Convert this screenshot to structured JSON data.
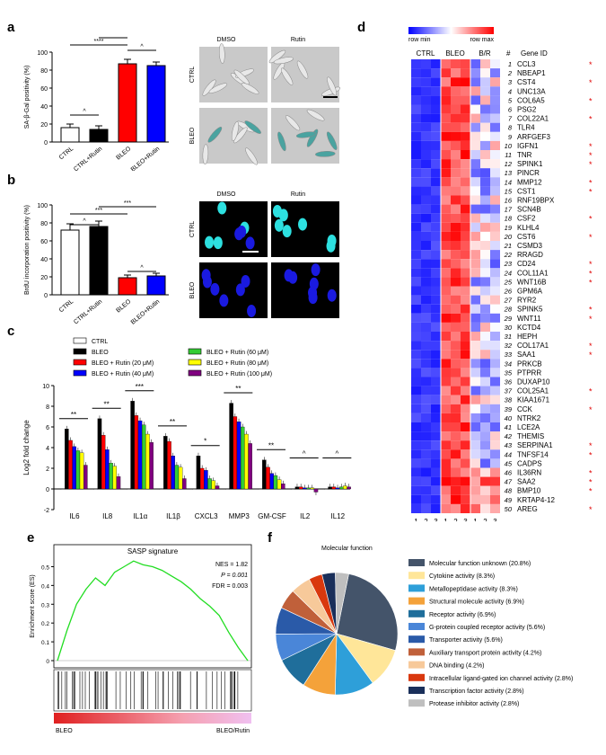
{
  "letters": {
    "a": "a",
    "b": "b",
    "c": "c",
    "d": "d",
    "e": "e",
    "f": "f"
  },
  "panel_a": {
    "ylabel": "SA-β-Gal positivity (%)",
    "yticks": [
      "0",
      "20",
      "40",
      "60",
      "80",
      "100"
    ],
    "categories": [
      "CTRL",
      "CTRL+Rutin",
      "BLEO",
      "BLEO+Rutin"
    ],
    "values": [
      16,
      14,
      87,
      85
    ],
    "errors": [
      4,
      4,
      5,
      4
    ],
    "colors": [
      "#ffffff",
      "#000000",
      "#ff0000",
      "#0000ff"
    ],
    "sig": [
      "****",
      "****",
      "^",
      "^"
    ],
    "image_cols": [
      "DMSO",
      "Rutin"
    ],
    "image_rows": [
      "CTRL",
      "BLEO"
    ]
  },
  "panel_b": {
    "ylabel": "BrdU incorporation positivity (%)",
    "yticks": [
      "0",
      "20",
      "40",
      "60",
      "80",
      "100"
    ],
    "categories": [
      "CTRL",
      "CTRL+Rutin",
      "BLEO",
      "BLEO+Rutin"
    ],
    "values": [
      72,
      76,
      19,
      21
    ],
    "errors": [
      7,
      6,
      3,
      3
    ],
    "colors": [
      "#ffffff",
      "#000000",
      "#ff0000",
      "#0000ff"
    ],
    "sig": [
      "***",
      "***",
      "^",
      "^"
    ],
    "image_cols": [
      "DMSO",
      "Rutin"
    ],
    "image_rows": [
      "CTRL",
      "BLEO"
    ]
  },
  "panel_c": {
    "ylabel": "Log2 fold change",
    "yticks": [
      "-2",
      "0",
      "2",
      "4",
      "6",
      "8",
      "10"
    ],
    "legend": [
      {
        "label": "CTRL",
        "color": "#ffffff"
      },
      {
        "label": "BLEO",
        "color": "#000000"
      },
      {
        "label": "BLEO + Rutin (20 μM)",
        "color": "#ff0000"
      },
      {
        "label": "BLEO + Rutin (40 μM)",
        "color": "#0000ff"
      },
      {
        "label": "BLEO + Rutin (60 μM)",
        "color": "#33cc33"
      },
      {
        "label": "BLEO + Rutin (80 μM)",
        "color": "#ffff00"
      },
      {
        "label": "BLEO + Rutin (100 μM)",
        "color": "#800080"
      }
    ],
    "categories": [
      "IL6",
      "IL8",
      "IL1α",
      "IL1β",
      "CXCL3",
      "MMP3",
      "GM-CSF",
      "IL2",
      "IL12"
    ],
    "sig": [
      "**",
      "**",
      "***",
      "**",
      "*",
      "**",
      "**",
      "^",
      "^"
    ],
    "values": [
      [
        0,
        5.8,
        4.7,
        4.1,
        3.7,
        3.5,
        2.3
      ],
      [
        0,
        6.8,
        5.2,
        3.8,
        2.5,
        2.2,
        1.2
      ],
      [
        0,
        8.5,
        7.1,
        6.6,
        6.2,
        5.3,
        4.5
      ],
      [
        0,
        5.1,
        4.6,
        3.2,
        2.3,
        2.1,
        1.0
      ],
      [
        0,
        3.2,
        2.0,
        1.8,
        1.0,
        0.8,
        0.3
      ],
      [
        0,
        8.3,
        7.0,
        6.5,
        6.0,
        5.3,
        4.4
      ],
      [
        0,
        2.8,
        2.1,
        1.5,
        1.3,
        0.9,
        0.5
      ],
      [
        0,
        0.2,
        0.2,
        0.1,
        0.1,
        0.1,
        -0.3
      ],
      [
        0,
        0.2,
        0.2,
        0.1,
        0.2,
        0.3,
        0.2
      ]
    ]
  },
  "panel_d": {
    "scale_min": "row min",
    "scale_max": "row max",
    "groups": [
      "CTRL",
      "BLEO",
      "B/R"
    ],
    "col_nums": [
      "1",
      "2",
      "3",
      "1",
      "2",
      "3",
      "1",
      "2",
      "3"
    ],
    "hash": "#",
    "gene_header": "Gene ID",
    "genes": [
      "CCL3",
      "NBEAP1",
      "CST4",
      "UNC13A",
      "COL6A5",
      "PSG2",
      "COL22A1",
      "TLR4",
      "ARFGEF3",
      "IGFN1",
      "TNR",
      "SPINK1",
      "PINCR",
      "MMP12",
      "CST1",
      "RNF19BPX",
      "SCN4B",
      "CSF2",
      "KLHL4",
      "CST6",
      "CSMD3",
      "RRAGD",
      "CD24",
      "COL11A1",
      "WNT16B",
      "GPM6A",
      "RYR2",
      "SPINK5",
      "WNT11",
      "KCTD4",
      "HEPH",
      "COL17A1",
      "SAA1",
      "PRKCB",
      "PTPRR",
      "DUXAP10",
      "COL25A1",
      "KIAA1671",
      "CCK",
      "NTRK2",
      "LCE2A",
      "THEMIS",
      "SERPINA1",
      "TNFSF14",
      "CADPS",
      "IL36RN",
      "SAA2",
      "BMP10",
      "KRTAP4-12",
      "AREG"
    ],
    "starred": [
      1,
      3,
      5,
      7,
      10,
      11,
      12,
      14,
      15,
      18,
      20,
      23,
      24,
      25,
      28,
      29,
      32,
      33,
      37,
      39,
      43,
      44,
      46,
      47,
      48,
      50
    ],
    "star": "*"
  },
  "panel_e": {
    "title": "SASP signature",
    "ylabel": "Enrichment score (ES)",
    "yticks": [
      "0",
      "0.1",
      "0.2",
      "0.3",
      "0.4",
      "0.5"
    ],
    "stats": [
      "NES = 1.82",
      "P = 0.001",
      "FDR = 0.003"
    ],
    "left_label": "BLEO",
    "right_label": "BLEO/Rutin",
    "chart_data": {
      "type": "line",
      "x": [
        0,
        5,
        10,
        15,
        20,
        25,
        30,
        35,
        40,
        45,
        50,
        55,
        60,
        65,
        70,
        75,
        80,
        85,
        90,
        95,
        100
      ],
      "y": [
        0,
        0.16,
        0.3,
        0.38,
        0.44,
        0.4,
        0.47,
        0.5,
        0.53,
        0.51,
        0.5,
        0.48,
        0.45,
        0.42,
        0.38,
        0.33,
        0.29,
        0.24,
        0.15,
        0.07,
        0.0
      ],
      "ylim": [
        0,
        0.55
      ]
    }
  },
  "panel_f": {
    "title": "Molecular function",
    "slices": [
      {
        "label": "Molecular function unknown (20.8%)",
        "value": 20.8,
        "color": "#44546a"
      },
      {
        "label": "Cytokine activity (8.3%)",
        "value": 8.3,
        "color": "#ffe699"
      },
      {
        "label": "Metallopeptidase activity (8.3%)",
        "value": 8.3,
        "color": "#2e9fd9"
      },
      {
        "label": "Structural molecule activity (6.9%)",
        "value": 6.9,
        "color": "#f4a23a"
      },
      {
        "label": "Receptor activity (6.9%)",
        "value": 6.9,
        "color": "#1f6e9b"
      },
      {
        "label": "G-protein coupled receptor activity (5.6%)",
        "value": 5.6,
        "color": "#4a86d8"
      },
      {
        "label": "Transporter activity (5.6%)",
        "value": 5.6,
        "color": "#2a5aa8"
      },
      {
        "label": "Auxiliary transport protein activity (4.2%)",
        "value": 4.2,
        "color": "#c0603a"
      },
      {
        "label": "DNA binding (4.2%)",
        "value": 4.2,
        "color": "#f7c99a"
      },
      {
        "label": "Intracellular ligand-gated ion channel activity (2.8%)",
        "value": 2.8,
        "color": "#d9380e"
      },
      {
        "label": "Transcription factor activity (2.8%)",
        "value": 2.8,
        "color": "#1a2f5a"
      },
      {
        "label": "Protease inhibitor activity (2.8%)",
        "value": 2.8,
        "color": "#bfbfbf"
      }
    ]
  }
}
